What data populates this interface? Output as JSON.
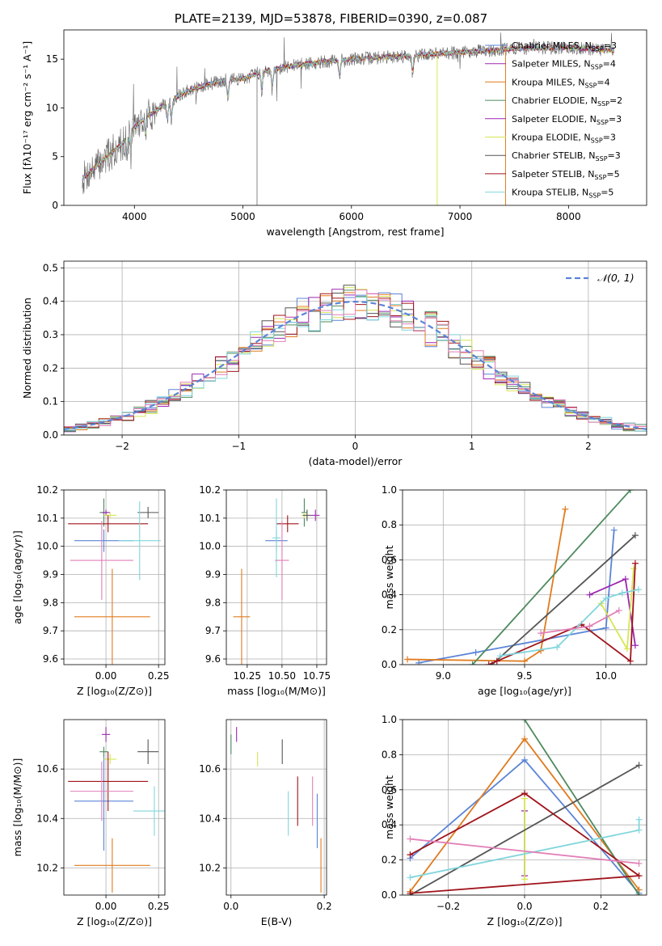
{
  "figure_title": "PLATE=2139, MJD=53878, FIBERID=0390, z=0.087",
  "colors": {
    "Chabrier MILES": "#5b84d6",
    "Salpeter MILES": "#9b27b0",
    "Kroupa MILES": "#e07b1f",
    "Chabrier ELODIE": "#4f8a5f",
    "Salpeter ELODIE": "#9b27b0",
    "Kroupa ELODIE": "#d6e655",
    "Chabrier STELIB": "#555555",
    "Salpeter STELIB": "#a0141c",
    "Kroupa STELIB": "#80d6dc",
    "pink": "#e27fb7"
  },
  "chart_data": [
    {
      "id": "spectrum",
      "type": "line",
      "title": "PLATE=2139, MJD=53878, FIBERID=0390, z=0.087",
      "xlabel": "wavelength [Angstrom, rest frame]",
      "ylabel": "Flux [fλ10⁻¹⁷ erg cm⁻² s⁻¹ A⁻¹]",
      "xlim": [
        3350,
        8720
      ],
      "ylim": [
        0,
        18
      ],
      "xticks": [
        "4000",
        "5000",
        "6000",
        "7000",
        "8000"
      ],
      "yticks": [
        "0",
        "5",
        "10",
        "15"
      ],
      "legend_position": "right",
      "legend": [
        "Chabrier MILES, N_SSP=3",
        "Salpeter MILES, N_SSP=4",
        "Kroupa MILES, N_SSP=4",
        "Chabrier ELODIE, N_SSP=2",
        "Salpeter ELODIE, N_SSP=3",
        "Kroupa ELODIE, N_SSP=3",
        "Chabrier STELIB, N_SSP=3",
        "Salpeter STELIB, N_SSP=5",
        "Kroupa STELIB, N_SSP=5"
      ],
      "continuum_x": [
        3500,
        3700,
        3900,
        4000,
        4100,
        4300,
        4500,
        4800,
        5000,
        5200,
        5500,
        5800,
        6000,
        6300,
        6600,
        7000,
        7300,
        7500,
        8000,
        8400
      ],
      "continuum_y": [
        2.5,
        4.5,
        6.5,
        8.0,
        9.0,
        10.5,
        11.8,
        12.8,
        13.0,
        13.8,
        14.4,
        14.8,
        15.0,
        15.2,
        15.4,
        15.7,
        15.9,
        16.1,
        16.2,
        15.9
      ]
    },
    {
      "id": "residuals",
      "type": "line",
      "xlabel": "(data-model)/error",
      "ylabel": "Normed distribution",
      "xlim": [
        -2.5,
        2.5
      ],
      "ylim": [
        0,
        0.52
      ],
      "xticks": [
        "−2",
        "−1",
        "0",
        "1",
        "2"
      ],
      "yticks": [
        "0.0",
        "0.1",
        "0.2",
        "0.3",
        "0.4",
        "0.5"
      ],
      "legend": [
        "𝒩(0, 1)"
      ],
      "bin_width": 0.1
    },
    {
      "id": "age_vs_Z",
      "type": "scatter",
      "xlabel": "Z [log₁₀(Z/Z⊙)]",
      "ylabel": "age  [log₁₀(age/yr)]",
      "xlim": [
        -0.2,
        0.28
      ],
      "ylim": [
        9.58,
        10.2
      ],
      "xticks": [
        "0.00",
        "0.25"
      ],
      "yticks": [
        "9.6",
        "9.7",
        "9.8",
        "9.9",
        "10.0",
        "10.1",
        "10.2"
      ],
      "points": [
        {
          "c": "Chabrier MILES",
          "x": -0.01,
          "xe": 0.14,
          "y": 10.02,
          "ye": 0.04
        },
        {
          "c": "Kroupa MILES",
          "x": 0.03,
          "xe": 0.18,
          "y": 9.75,
          "ye": 0.17
        },
        {
          "c": "Chabrier ELODIE",
          "x": -0.01,
          "xe": 0.02,
          "y": 10.12,
          "ye": 0.05
        },
        {
          "c": "Salpeter ELODIE",
          "x": 0.0,
          "xe": 0.02,
          "y": 10.12,
          "ye": 0.01
        },
        {
          "c": "Kroupa ELODIE",
          "x": 0.02,
          "xe": 0.03,
          "y": 10.11,
          "ye": 0.01
        },
        {
          "c": "Chabrier STELIB",
          "x": 0.2,
          "xe": 0.05,
          "y": 10.12,
          "ye": 0.02
        },
        {
          "c": "Salpeter STELIB",
          "x": 0.01,
          "xe": 0.19,
          "y": 10.08,
          "ye": 0.03
        },
        {
          "c": "Kroupa STELIB",
          "x": 0.16,
          "xe": 0.1,
          "y": 10.02,
          "ye": 0.14
        },
        {
          "c": "pink",
          "x": -0.02,
          "xe": 0.15,
          "y": 9.95,
          "ye": 0.14
        }
      ]
    },
    {
      "id": "age_vs_mass",
      "type": "scatter",
      "xlabel": "mass [log₁₀(M/M⊙)]",
      "xlim": [
        10.1,
        10.82
      ],
      "ylim": [
        9.58,
        10.2
      ],
      "xticks": [
        "10.25",
        "10.50",
        "10.75"
      ],
      "yticks": [
        "9.6",
        "9.7",
        "9.8",
        "9.9",
        "10.0",
        "10.1",
        "10.2"
      ],
      "points": [
        {
          "c": "Chabrier MILES",
          "x": 10.46,
          "xe": 0.08,
          "y": 10.02,
          "ye": 0.04
        },
        {
          "c": "Kroupa MILES",
          "x": 10.21,
          "xe": 0.06,
          "y": 9.75,
          "ye": 0.17
        },
        {
          "c": "Chabrier ELODIE",
          "x": 10.66,
          "xe": 0.02,
          "y": 10.12,
          "ye": 0.05
        },
        {
          "c": "Salpeter ELODIE",
          "x": 10.74,
          "xe": 0.03,
          "y": 10.11,
          "ye": 0.02
        },
        {
          "c": "Kroupa ELODIE",
          "x": 10.66,
          "xe": 0.02,
          "y": 10.11,
          "ye": 0.01
        },
        {
          "c": "Chabrier STELIB",
          "x": 10.68,
          "xe": 0.03,
          "y": 10.11,
          "ye": 0.02
        },
        {
          "c": "Salpeter STELIB",
          "x": 10.54,
          "xe": 0.08,
          "y": 10.08,
          "ye": 0.03
        },
        {
          "c": "Kroupa STELIB",
          "x": 10.46,
          "xe": 0.03,
          "y": 10.03,
          "ye": 0.14
        },
        {
          "c": "pink",
          "x": 10.5,
          "xe": 0.05,
          "y": 9.95,
          "ye": 0.14
        }
      ]
    },
    {
      "id": "weight_vs_age",
      "type": "line",
      "xlabel": "age  [log₁₀(age/yr)]",
      "ylabel": "mass weight",
      "xlim": [
        8.75,
        10.25
      ],
      "ylim": [
        0,
        1.0
      ],
      "xticks": [
        "9.0",
        "9.5",
        "10.0"
      ],
      "yticks": [
        "0.0",
        "0.2",
        "0.4",
        "0.6",
        "0.8",
        "1.0"
      ],
      "series": [
        {
          "c": "Chabrier MILES",
          "x": [
            8.85,
            9.2,
            10.0,
            10.05
          ],
          "y": [
            0.01,
            0.07,
            0.21,
            0.77
          ]
        },
        {
          "c": "Kroupa MILES",
          "x": [
            8.78,
            9.5,
            9.6,
            9.75
          ],
          "y": [
            0.03,
            0.02,
            0.08,
            0.89
          ]
        },
        {
          "c": "Chabrier ELODIE",
          "x": [
            9.18,
            10.15
          ],
          "y": [
            0.0,
            1.0
          ]
        },
        {
          "c": "Salpeter ELODIE",
          "x": [
            9.9,
            10.12,
            10.18
          ],
          "y": [
            0.4,
            0.49,
            0.11
          ]
        },
        {
          "c": "Kroupa ELODIE",
          "x": [
            9.97,
            10.13,
            10.17
          ],
          "y": [
            0.35,
            0.09,
            0.55
          ]
        },
        {
          "c": "Chabrier STELIB",
          "x": [
            9.3,
            10.18
          ],
          "y": [
            0.0,
            0.74
          ]
        },
        {
          "c": "Salpeter STELIB",
          "x": [
            9.28,
            9.33,
            9.85,
            10.15,
            10.18
          ],
          "y": [
            0.0,
            0.02,
            0.23,
            0.02,
            0.58
          ]
        },
        {
          "c": "Kroupa STELIB",
          "x": [
            9.35,
            9.7,
            10.0,
            10.1,
            10.2
          ],
          "y": [
            0.05,
            0.1,
            0.38,
            0.41,
            0.43
          ]
        },
        {
          "c": "pink",
          "x": [
            9.6,
            9.9,
            10.08
          ],
          "y": [
            0.18,
            0.22,
            0.31
          ]
        }
      ]
    },
    {
      "id": "mass_vs_Z",
      "type": "scatter",
      "xlabel": "Z [log₁₀(Z/Z⊙)]",
      "ylabel": "mass [log₁₀(M/M⊙)]",
      "xlim": [
        -0.2,
        0.28
      ],
      "ylim": [
        10.09,
        10.8
      ],
      "xticks": [
        "0.00",
        "0.25"
      ],
      "yticks": [
        "10.2",
        "10.4",
        "10.6"
      ],
      "points": [
        {
          "c": "Chabrier MILES",
          "x": -0.01,
          "xe": 0.14,
          "y": 10.47,
          "ye": 0.2
        },
        {
          "c": "Kroupa MILES",
          "x": 0.03,
          "xe": 0.18,
          "y": 10.21,
          "ye": 0.11
        },
        {
          "c": "Chabrier ELODIE",
          "x": -0.01,
          "xe": 0.02,
          "y": 10.67,
          "ye": 0.02
        },
        {
          "c": "Salpeter ELODIE",
          "x": 0.0,
          "xe": 0.02,
          "y": 10.74,
          "ye": 0.03
        },
        {
          "c": "Kroupa ELODIE",
          "x": 0.02,
          "xe": 0.03,
          "y": 10.64,
          "ye": 0.02
        },
        {
          "c": "Chabrier STELIB",
          "x": 0.2,
          "xe": 0.05,
          "y": 10.67,
          "ye": 0.05
        },
        {
          "c": "Salpeter STELIB",
          "x": 0.01,
          "xe": 0.19,
          "y": 10.55,
          "ye": 0.12
        },
        {
          "c": "Kroupa STELIB",
          "x": 0.23,
          "xe": 0.1,
          "y": 10.43,
          "ye": 0.1
        },
        {
          "c": "pink",
          "x": -0.02,
          "xe": 0.15,
          "y": 10.51,
          "ye": 0.12
        }
      ]
    },
    {
      "id": "mass_vs_EBV",
      "type": "scatter",
      "xlabel": "E(B-V)",
      "xlim": [
        -0.01,
        0.205
      ],
      "ylim": [
        10.09,
        10.8
      ],
      "xticks": [
        "0.0",
        "0.2"
      ],
      "yticks": [
        "10.2",
        "10.4",
        "10.6"
      ],
      "points": [
        {
          "c": "Chabrier MILES",
          "x": 0.185,
          "y": 10.39,
          "ye": 0.11
        },
        {
          "c": "Kroupa MILES",
          "x": 0.193,
          "y": 10.21,
          "ye": 0.11
        },
        {
          "c": "Chabrier ELODIE",
          "x": 0.0,
          "y": 10.7,
          "ye": 0.04
        },
        {
          "c": "Salpeter ELODIE",
          "x": 0.012,
          "y": 10.74,
          "ye": 0.03
        },
        {
          "c": "Kroupa ELODIE",
          "x": 0.057,
          "y": 10.64,
          "ye": 0.03
        },
        {
          "c": "Chabrier STELIB",
          "x": 0.11,
          "y": 10.67,
          "ye": 0.05
        },
        {
          "c": "Salpeter STELIB",
          "x": 0.143,
          "y": 10.47,
          "ye": 0.1
        },
        {
          "c": "Kroupa STELIB",
          "x": 0.123,
          "y": 10.42,
          "ye": 0.09
        },
        {
          "c": "pink",
          "x": 0.175,
          "y": 10.47,
          "ye": 0.1
        }
      ]
    },
    {
      "id": "weight_vs_Z",
      "type": "line",
      "xlabel": "Z [log₁₀(Z/Z⊙)]",
      "ylabel": "mass weight",
      "xlim": [
        -0.32,
        0.32
      ],
      "ylim": [
        0,
        1.0
      ],
      "xticks": [
        "−0.2",
        "0.0",
        "0.2"
      ],
      "yticks": [
        "0.0",
        "0.2",
        "0.4",
        "0.6",
        "0.8",
        "1.0"
      ],
      "series": [
        {
          "c": "Chabrier MILES",
          "x": [
            -0.3,
            0.0,
            0.3
          ],
          "y": [
            0.21,
            0.77,
            0.01
          ]
        },
        {
          "c": "Kroupa MILES",
          "x": [
            -0.3,
            0.0,
            0.3
          ],
          "y": [
            0.02,
            0.89,
            0.03
          ]
        },
        {
          "c": "Chabrier ELODIE",
          "x": [
            0.0,
            0.3
          ],
          "y": [
            1.0,
            0.0
          ]
        },
        {
          "c": "Salpeter ELODIE",
          "x": [
            0.0,
            0.0
          ],
          "y": [
            0.48,
            0.11
          ]
        },
        {
          "c": "Kroupa ELODIE",
          "x": [
            0.0,
            0.0
          ],
          "y": [
            0.55,
            0.09
          ]
        },
        {
          "c": "Chabrier STELIB",
          "x": [
            -0.3,
            0.3
          ],
          "y": [
            0.0,
            0.74
          ]
        },
        {
          "c": "Salpeter STELIB",
          "x": [
            -0.3,
            0.0,
            0.3,
            -0.3
          ],
          "y": [
            0.23,
            0.58,
            0.11,
            0.01
          ]
        },
        {
          "c": "Kroupa STELIB",
          "x": [
            -0.3,
            0.3,
            0.3
          ],
          "y": [
            0.1,
            0.37,
            0.43
          ]
        },
        {
          "c": "pink",
          "x": [
            -0.3,
            0.3
          ],
          "y": [
            0.32,
            0.18
          ]
        }
      ]
    }
  ]
}
